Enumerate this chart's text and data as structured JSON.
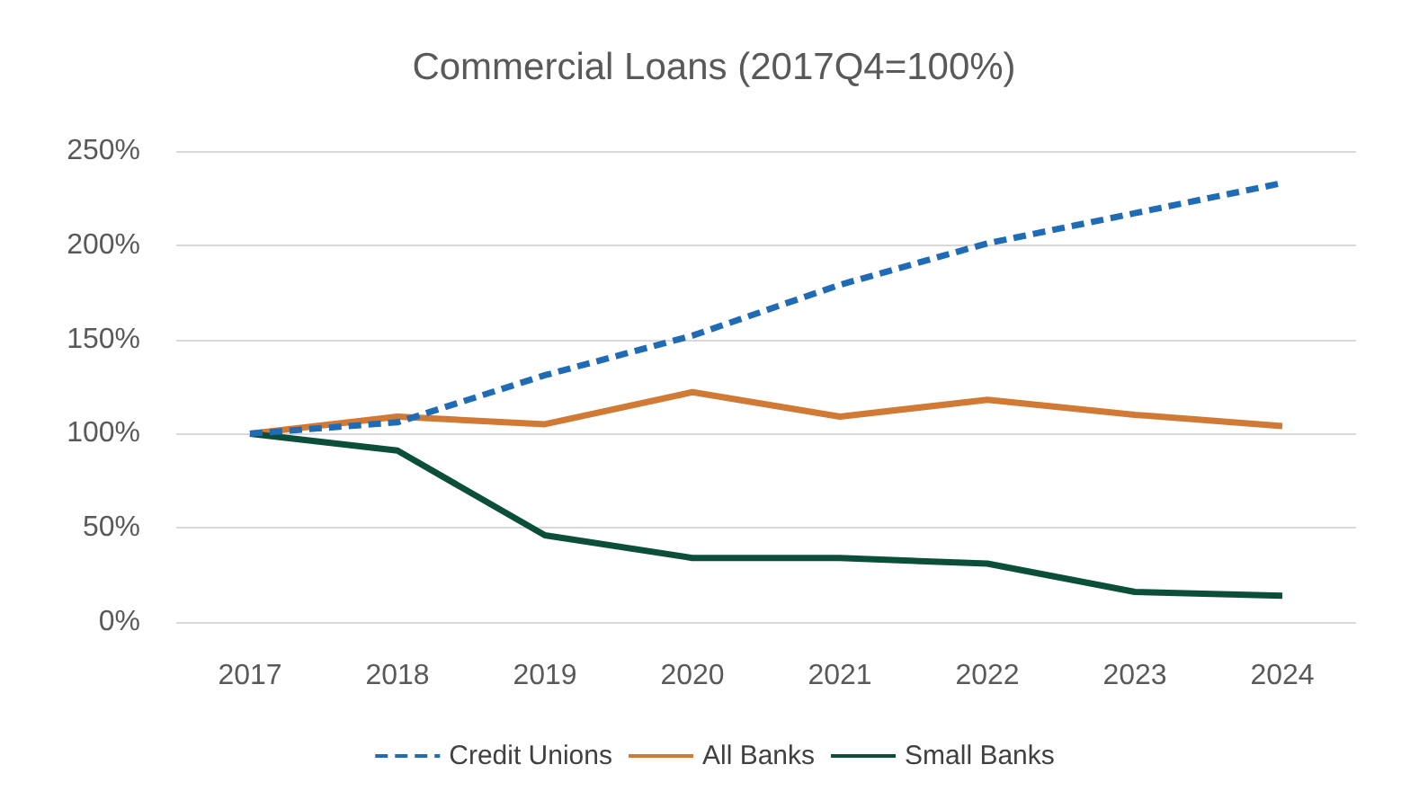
{
  "chart_data": {
    "type": "line",
    "title": "Commercial Loans (2017Q4=100%)",
    "categories": [
      "2017",
      "2018",
      "2019",
      "2020",
      "2021",
      "2022",
      "2023",
      "2024"
    ],
    "series": [
      {
        "name": "Credit Unions",
        "color": "#1f6bb5",
        "line_style": "dashed",
        "values": [
          100,
          106,
          131,
          152,
          179,
          201,
          217,
          233
        ]
      },
      {
        "name": "All Banks",
        "color": "#d07a35",
        "line_style": "solid",
        "values": [
          100,
          109,
          105,
          122,
          109,
          118,
          110,
          104
        ]
      },
      {
        "name": "Small Banks",
        "color": "#0b4f3a",
        "line_style": "solid",
        "values": [
          100,
          91,
          46,
          34,
          34,
          31,
          16,
          14
        ]
      }
    ],
    "ylim": [
      0,
      250
    ],
    "yticks": [
      {
        "value": 0,
        "label": "0%"
      },
      {
        "value": 50,
        "label": "50%"
      },
      {
        "value": 100,
        "label": "100%"
      },
      {
        "value": 150,
        "label": "150%"
      },
      {
        "value": 200,
        "label": "200%"
      },
      {
        "value": 250,
        "label": "250%"
      }
    ],
    "grid": "y",
    "legend": "bottom",
    "marker": "none"
  }
}
